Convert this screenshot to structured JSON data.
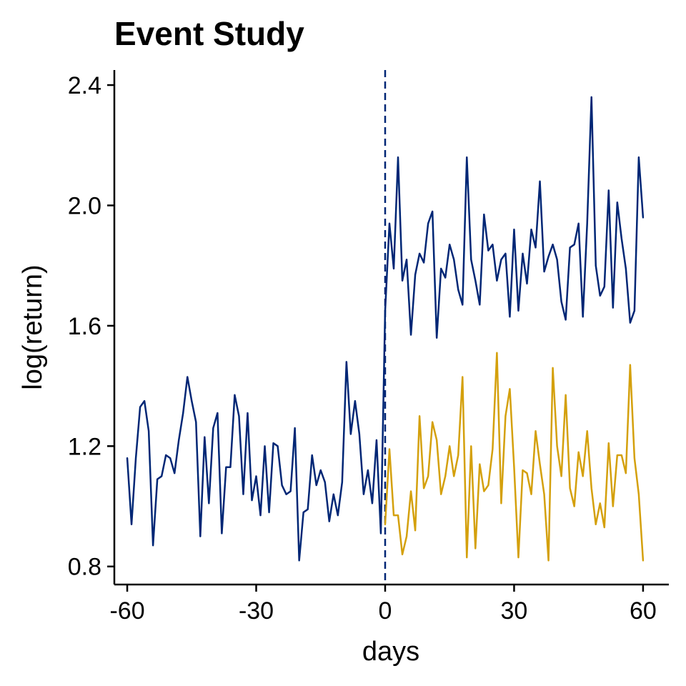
{
  "colors": {
    "pre": "#002675",
    "post_high": "#002675",
    "post_low": "#D4A00C",
    "event_line": "#002675",
    "axis": "#000000"
  },
  "chart_data": {
    "type": "line",
    "title": "Event Study",
    "xlabel": "days",
    "ylabel": "log(return)",
    "xlim": [
      -63,
      66
    ],
    "ylim": [
      0.74,
      2.45
    ],
    "x_ticks": [
      -60,
      -30,
      0,
      30,
      60
    ],
    "x_tick_labels": [
      "-60",
      "-30",
      "0",
      "30",
      "60"
    ],
    "y_ticks": [
      0.8,
      1.2,
      1.6,
      2.0,
      2.4
    ],
    "y_tick_labels": [
      "0.8",
      "1.2",
      "1.6",
      "2.0",
      "2.4"
    ],
    "event_day": 0,
    "grid": false,
    "series": [
      {
        "color": "#002675",
        "x": [
          -60,
          -59,
          -58,
          -57,
          -56,
          -55,
          -54,
          -53,
          -52,
          -51,
          -50,
          -49,
          -48,
          -47,
          -46,
          -45,
          -44,
          -43,
          -42,
          -41,
          -40,
          -39,
          -38,
          -37,
          -36,
          -35,
          -34,
          -33,
          -32,
          -31,
          -30,
          -29,
          -28,
          -27,
          -26,
          -25,
          -24,
          -23,
          -22,
          -21,
          -20,
          -19,
          -18,
          -17,
          -16,
          -15,
          -14,
          -13,
          -12,
          -11,
          -10,
          -9,
          -8,
          -7,
          -6,
          -5,
          -4,
          -3,
          -2,
          -1,
          0
        ],
        "y": [
          1.16,
          0.94,
          1.16,
          1.33,
          1.35,
          1.25,
          0.87,
          1.09,
          1.1,
          1.17,
          1.16,
          1.11,
          1.22,
          1.31,
          1.43,
          1.35,
          1.28,
          0.9,
          1.23,
          1.01,
          1.26,
          1.31,
          0.91,
          1.13,
          1.13,
          1.37,
          1.3,
          1.04,
          1.31,
          1.02,
          1.1,
          0.97,
          1.2,
          0.98,
          1.21,
          1.2,
          1.07,
          1.04,
          1.05,
          1.26,
          0.82,
          0.98,
          0.99,
          1.17,
          1.07,
          1.12,
          1.08,
          0.95,
          1.04,
          0.97,
          1.08,
          1.48,
          1.24,
          1.35,
          1.24,
          1.04,
          1.12,
          1.01,
          1.22,
          0.91,
          1.65
        ]
      },
      {
        "color": "#002675",
        "x": [
          0,
          1,
          2,
          3,
          4,
          5,
          6,
          7,
          8,
          9,
          10,
          11,
          12,
          13,
          14,
          15,
          16,
          17,
          18,
          19,
          20,
          21,
          22,
          23,
          24,
          25,
          26,
          27,
          28,
          29,
          30,
          31,
          32,
          33,
          34,
          35,
          36,
          37,
          38,
          39,
          40,
          41,
          42,
          43,
          44,
          45,
          46,
          47,
          48,
          49,
          50,
          51,
          52,
          53,
          54,
          55,
          56,
          57,
          58,
          59,
          60
        ],
        "y": [
          1.65,
          1.94,
          1.79,
          2.16,
          1.75,
          1.82,
          1.57,
          1.77,
          1.84,
          1.81,
          1.94,
          1.98,
          1.56,
          1.79,
          1.76,
          1.87,
          1.82,
          1.72,
          1.67,
          2.16,
          1.82,
          1.75,
          1.67,
          1.97,
          1.85,
          1.87,
          1.75,
          1.82,
          1.84,
          1.63,
          1.92,
          1.65,
          1.84,
          1.74,
          1.92,
          1.86,
          2.08,
          1.78,
          1.83,
          1.87,
          1.82,
          1.68,
          1.62,
          1.86,
          1.87,
          1.94,
          1.63,
          1.94,
          2.36,
          1.8,
          1.7,
          1.73,
          2.05,
          1.66,
          2.01,
          1.89,
          1.79,
          1.61,
          1.65,
          2.16,
          1.96
        ]
      },
      {
        "color": "#D4A00C",
        "x": [
          0,
          1,
          2,
          3,
          4,
          5,
          6,
          7,
          8,
          9,
          10,
          11,
          12,
          13,
          14,
          15,
          16,
          17,
          18,
          19,
          20,
          21,
          22,
          23,
          24,
          25,
          26,
          27,
          28,
          29,
          30,
          31,
          32,
          33,
          34,
          35,
          36,
          37,
          38,
          39,
          40,
          41,
          42,
          43,
          44,
          45,
          46,
          47,
          48,
          49,
          50,
          51,
          52,
          53,
          54,
          55,
          56,
          57,
          58,
          59,
          60
        ],
        "y": [
          0.94,
          1.19,
          0.97,
          0.97,
          0.84,
          0.9,
          1.05,
          0.92,
          1.3,
          1.06,
          1.1,
          1.28,
          1.22,
          1.04,
          1.1,
          1.2,
          1.1,
          1.17,
          1.43,
          0.83,
          1.2,
          0.86,
          1.14,
          1.05,
          1.07,
          1.19,
          1.51,
          1.01,
          1.3,
          1.39,
          1.13,
          0.83,
          1.12,
          1.11,
          1.04,
          1.25,
          1.14,
          1.04,
          0.82,
          1.46,
          1.2,
          1.1,
          1.37,
          1.06,
          1.0,
          1.18,
          1.1,
          1.25,
          1.06,
          0.94,
          1.01,
          0.93,
          1.21,
          1.0,
          1.17,
          1.17,
          1.11,
          1.47,
          1.16,
          1.04,
          0.82
        ]
      }
    ]
  }
}
